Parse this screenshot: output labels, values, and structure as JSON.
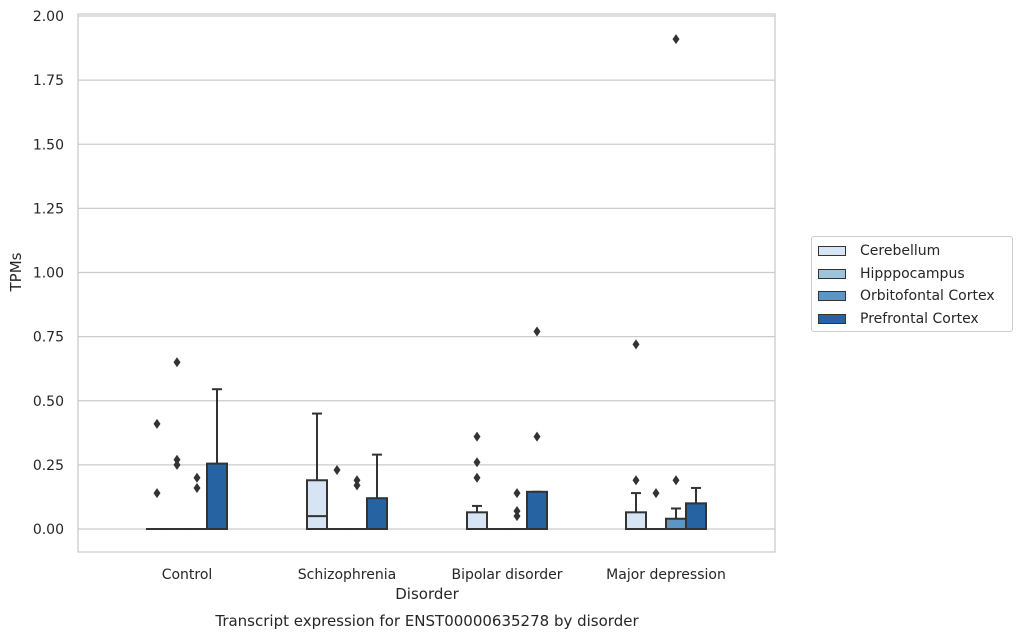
{
  "chart_data": {
    "type": "box",
    "xlabel": "Disorder",
    "ylabel": "TPMs",
    "caption": "Transcript expression for ENST00000635278 by disorder",
    "ylim": [
      -0.09,
      2.01
    ],
    "yticks": [
      "0.00",
      "0.25",
      "0.50",
      "0.75",
      "1.00",
      "1.25",
      "1.50",
      "1.75",
      "2.00"
    ],
    "grid": true,
    "legend_position": "right",
    "categories": [
      "Control",
      "Schizophrenia",
      "Bipolar disorder",
      "Major depression"
    ],
    "series": [
      {
        "name": "Cerebellum",
        "color": "#d6e4f3",
        "boxes": [
          {
            "q1": 0,
            "median": 0,
            "q3": 0,
            "whisker_low": 0,
            "whisker_high": 0,
            "outliers": [
              0.41,
              0.14
            ]
          },
          {
            "q1": 0,
            "median": 0.05,
            "q3": 0.19,
            "whisker_low": 0,
            "whisker_high": 0.45,
            "outliers": []
          },
          {
            "q1": 0,
            "median": 0,
            "q3": 0.065,
            "whisker_low": 0,
            "whisker_high": 0.09,
            "outliers": [
              0.36,
              0.26,
              0.2
            ]
          },
          {
            "q1": 0,
            "median": 0,
            "q3": 0.065,
            "whisker_low": 0,
            "whisker_high": 0.14,
            "outliers": [
              0.72,
              0.19
            ]
          }
        ]
      },
      {
        "name": "Hipppocampus",
        "color": "#9ec3dc",
        "boxes": [
          {
            "q1": 0,
            "median": 0,
            "q3": 0,
            "whisker_low": 0,
            "whisker_high": 0,
            "outliers": [
              0.65,
              0.27,
              0.25
            ]
          },
          {
            "q1": 0,
            "median": 0,
            "q3": 0,
            "whisker_low": 0,
            "whisker_high": 0,
            "outliers": [
              0.23
            ]
          },
          {
            "q1": 0,
            "median": 0,
            "q3": 0,
            "whisker_low": 0,
            "whisker_high": 0,
            "outliers": []
          },
          {
            "q1": 0,
            "median": 0,
            "q3": 0,
            "whisker_low": 0,
            "whisker_high": 0,
            "outliers": [
              0.14
            ]
          }
        ]
      },
      {
        "name": "Orbitofontal Cortex",
        "color": "#5b96c6",
        "boxes": [
          {
            "q1": 0,
            "median": 0,
            "q3": 0,
            "whisker_low": 0,
            "whisker_high": 0,
            "outliers": [
              0.2,
              0.16
            ]
          },
          {
            "q1": 0,
            "median": 0,
            "q3": 0,
            "whisker_low": 0,
            "whisker_high": 0,
            "outliers": [
              0.19,
              0.17
            ]
          },
          {
            "q1": 0,
            "median": 0,
            "q3": 0,
            "whisker_low": 0,
            "whisker_high": 0,
            "outliers": [
              0.14,
              0.07,
              0.05
            ]
          },
          {
            "q1": 0,
            "median": 0,
            "q3": 0.04,
            "whisker_low": 0,
            "whisker_high": 0.08,
            "outliers": [
              0.19,
              1.91
            ]
          }
        ]
      },
      {
        "name": "Prefrontal Cortex",
        "color": "#2563a3",
        "boxes": [
          {
            "q1": 0,
            "median": 0,
            "q3": 0.255,
            "whisker_low": 0,
            "whisker_high": 0.545,
            "outliers": []
          },
          {
            "q1": 0,
            "median": 0,
            "q3": 0.12,
            "whisker_low": 0,
            "whisker_high": 0.29,
            "outliers": []
          },
          {
            "q1": 0,
            "median": 0,
            "q3": 0.145,
            "whisker_low": 0,
            "whisker_high": 0.145,
            "outliers": [
              0.36,
              0.77
            ]
          },
          {
            "q1": 0,
            "median": 0,
            "q3": 0.1,
            "whisker_low": 0,
            "whisker_high": 0.16,
            "outliers": []
          }
        ]
      }
    ]
  }
}
